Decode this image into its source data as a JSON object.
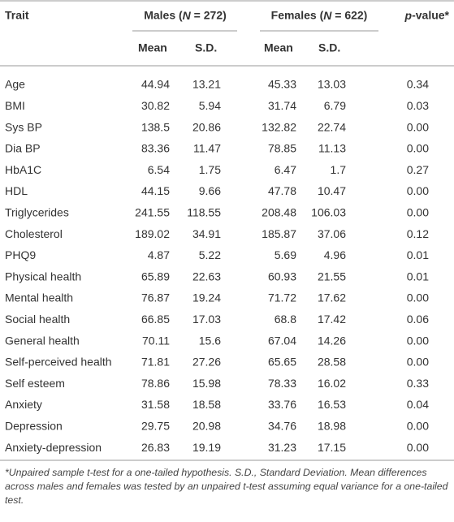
{
  "header": {
    "trait": "Trait",
    "groups": [
      "Males (N = 272)",
      "Females (N = 622)"
    ],
    "p_value": "p-value*",
    "subheaders": [
      "Mean",
      "S.D.",
      "Mean",
      "S.D."
    ]
  },
  "table": {
    "rows": [
      [
        "Age",
        "44.94",
        "13.21",
        "45.33",
        "13.03",
        "0.34"
      ],
      [
        "BMI",
        "30.82",
        "5.94",
        "31.74",
        "6.79",
        "0.03"
      ],
      [
        "Sys BP",
        "138.5",
        "20.86",
        "132.82",
        "22.74",
        "0.00"
      ],
      [
        "Dia BP",
        "83.36",
        "11.47",
        "78.85",
        "11.13",
        "0.00"
      ],
      [
        "HbA1C",
        "6.54",
        "1.75",
        "6.47",
        "1.7",
        "0.27"
      ],
      [
        "HDL",
        "44.15",
        "9.66",
        "47.78",
        "10.47",
        "0.00"
      ],
      [
        "Triglycerides",
        "241.55",
        "118.55",
        "208.48",
        "106.03",
        "0.00"
      ],
      [
        "Cholesterol",
        "189.02",
        "34.91",
        "185.87",
        "37.06",
        "0.12"
      ],
      [
        "PHQ9",
        "4.87",
        "5.22",
        "5.69",
        "4.96",
        "0.01"
      ],
      [
        "Physical health",
        "65.89",
        "22.63",
        "60.93",
        "21.55",
        "0.01"
      ],
      [
        "Mental health",
        "76.87",
        "19.24",
        "71.72",
        "17.62",
        "0.00"
      ],
      [
        "Social health",
        "66.85",
        "17.03",
        "68.8",
        "17.42",
        "0.06"
      ],
      [
        "General health",
        "70.11",
        "15.6",
        "67.04",
        "14.26",
        "0.00"
      ],
      [
        "Self-perceived health",
        "71.81",
        "27.26",
        "65.65",
        "28.58",
        "0.00"
      ],
      [
        "Self esteem",
        "78.86",
        "15.98",
        "78.33",
        "16.02",
        "0.33"
      ],
      [
        "Anxiety",
        "31.58",
        "18.58",
        "33.76",
        "16.53",
        "0.04"
      ],
      [
        "Depression",
        "29.75",
        "20.98",
        "34.76",
        "18.98",
        "0.00"
      ],
      [
        "Anxiety-depression",
        "26.83",
        "19.19",
        "31.23",
        "17.15",
        "0.00"
      ]
    ]
  },
  "footnote": "*Unpaired sample t-test for a one-tailed hypothesis. S.D., Standard Deviation. Mean differences across males and females was tested by an unpaired t-test assuming equal variance for a one-tailed test."
}
